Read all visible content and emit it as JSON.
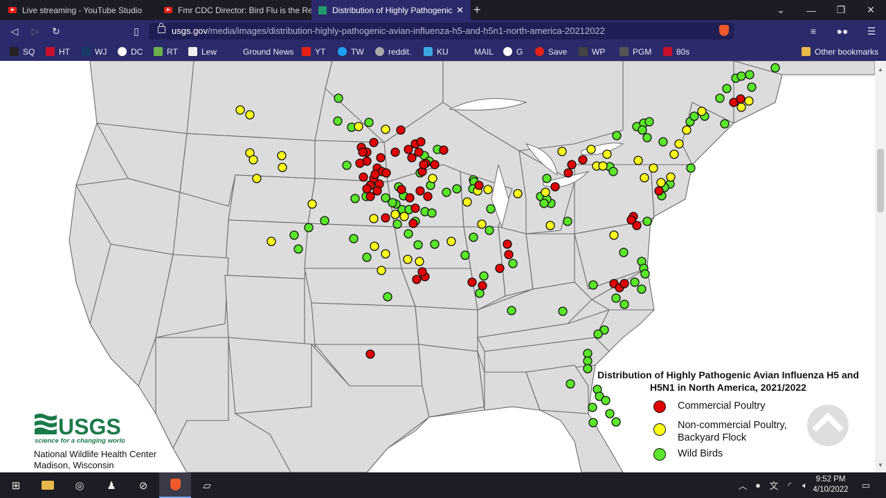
{
  "browser": {
    "tabs": [
      {
        "label": "Live streaming - YouTube Studio",
        "active": false
      },
      {
        "label": "Fmr CDC Director: Bird Flu is the Real",
        "active": false
      },
      {
        "label": "Distribution of Highly Pathogenic",
        "active": true
      }
    ],
    "new_tab": "+",
    "url_host": "usgs.gov",
    "url_path": "/media/images/distribution-highly-pathogenic-avian-influenza-h5-and-h5n1-north-america-20212022",
    "shields_count": "1",
    "bookmarks": [
      "SQ",
      "HT",
      "WJ",
      "DC",
      "RT",
      "Lew",
      "Ground News",
      "YT",
      "TW",
      "reddit.",
      "KU",
      "MAIL",
      "G",
      "Save",
      "WP",
      "PGM",
      "80s"
    ],
    "other_bookmarks": "Other bookmarks"
  },
  "map": {
    "title": "Distribution of Highly Pathogenic Avian Influenza H5 and H5N1 in North America, 2021/2022",
    "legend": [
      {
        "label": "Commercial Poultry",
        "color": "#e00000"
      },
      {
        "label": "Non-commercial Poultry, Backyard Flock",
        "color": "#ffff1a"
      },
      {
        "label": "Wild Birds",
        "color": "#5ae62a"
      }
    ],
    "agency_logo": "USGS",
    "agency_tagline": "science for a changing world",
    "center_name": "National Wildlife Health Center",
    "center_location": "Madison, Wisconsin"
  },
  "taskbar": {
    "time": "9:52 PM",
    "date": "4/10/2022"
  }
}
